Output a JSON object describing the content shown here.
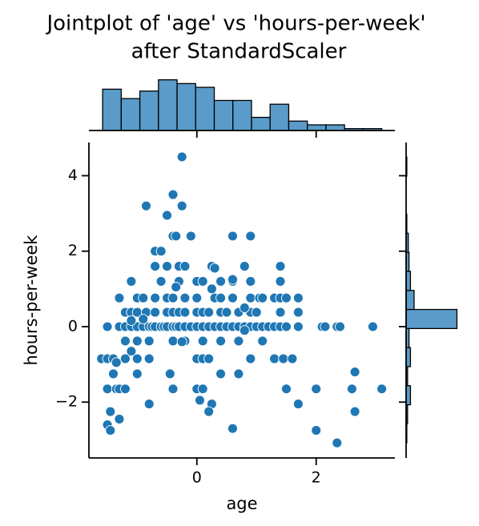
{
  "chart_data": {
    "type": "scatter",
    "title": [
      "Jointplot of 'age' vs 'hours-per-week'",
      "after StandardScaler"
    ],
    "x_label": "age",
    "y_label": "hours-per-week",
    "color": "#1f77b4",
    "xlim": [
      -1.81,
      3.32
    ],
    "ylim": [
      -3.48,
      4.88
    ],
    "xticks": [
      0,
      2
    ],
    "yticks": [
      {
        "value": -2,
        "label": "−2"
      },
      0,
      2,
      4
    ],
    "x": [
      -1.5,
      -1.3,
      -1.2,
      -1.1,
      -1.0,
      -0.9,
      -0.8,
      -0.75,
      -0.7,
      -0.6,
      -0.55,
      -0.5,
      -0.4,
      -0.35,
      -0.3,
      -0.2,
      -0.1,
      0,
      0.1,
      0.2,
      0.3,
      0.4,
      0.5,
      0.6,
      0.7,
      0.8,
      0.9,
      1.0,
      1.1,
      1.2,
      1.3,
      1.4,
      1.5,
      1.7,
      2.1,
      2.15,
      2.35,
      2.4,
      2.95,
      -1.2,
      -1.1,
      -1.0,
      -0.85,
      -0.7,
      -0.5,
      -0.4,
      -0.3,
      -0.2,
      0,
      0.1,
      0.2,
      0.4,
      0.5,
      0.7,
      0.9,
      1.0,
      1.4,
      1.7,
      -1.3,
      -1.0,
      -0.9,
      -0.7,
      -0.5,
      -0.4,
      -0.2,
      0,
      0.3,
      0.4,
      0.6,
      0.9,
      1.05,
      1.1,
      1.3,
      1.4,
      1.5,
      1.7,
      -1.1,
      -0.6,
      -0.3,
      0,
      0.1,
      0.4,
      0.6,
      0.9,
      1.4,
      -0.7,
      -0.5,
      -0.3,
      -0.2,
      0.25,
      0.8,
      1.4,
      -0.7,
      -0.6,
      -0.4,
      -0.35,
      -0.1,
      0.6,
      0.9,
      -1.2,
      -1.0,
      -0.8,
      -0.4,
      -0.2,
      0.1,
      0.4,
      0.7,
      1.1,
      -1.6,
      -1.5,
      -1.4,
      -1.2,
      -1.0,
      -0.8,
      0,
      0.1,
      0.2,
      0.9,
      1.3,
      1.45,
      1.6,
      -1.4,
      -1.0,
      -0.45,
      0.4,
      0.7,
      -1.5,
      -1.35,
      -1.3,
      -1.2,
      -0.4,
      0,
      0.1,
      1.5,
      2.0,
      2.6,
      -0.25,
      -0.4,
      -0.85,
      -0.25,
      -0.5,
      -1.5,
      -1.45,
      -1.45,
      -1.3,
      -0.8,
      0.05,
      0.25,
      0.2,
      0.6,
      2.0,
      2.35,
      2.65,
      1.7,
      2.65,
      3.1,
      -1.1,
      -0.9,
      0.8,
      0.3,
      -1.1,
      0.8,
      0.25,
      -0.35,
      0.6,
      -1.35,
      -0.25
    ],
    "y": [
      0,
      0,
      0,
      0,
      0,
      0,
      0,
      0,
      0,
      0,
      0,
      0,
      0,
      0,
      0,
      0,
      0,
      0,
      0,
      0,
      0,
      0,
      0,
      0,
      0,
      0,
      0,
      0,
      0,
      0,
      0,
      0,
      0,
      0,
      0,
      0,
      0,
      0,
      0,
      0.38,
      0.38,
      0.38,
      0.38,
      0.38,
      0.38,
      0.38,
      0.38,
      0.38,
      0.38,
      0.38,
      0.38,
      0.38,
      0.38,
      0.38,
      0.38,
      0.38,
      0.38,
      0.38,
      0.76,
      0.76,
      0.76,
      0.76,
      0.76,
      0.76,
      0.76,
      0.76,
      0.76,
      0.76,
      0.76,
      0.76,
      0.76,
      0.76,
      0.76,
      0.76,
      0.76,
      0.76,
      1.2,
      1.2,
      1.2,
      1.2,
      1.2,
      1.2,
      1.2,
      1.2,
      1.2,
      1.6,
      1.6,
      1.6,
      1.6,
      1.6,
      1.6,
      1.6,
      2.0,
      2.0,
      2.4,
      2.4,
      2.4,
      2.4,
      2.4,
      -0.38,
      -0.38,
      -0.38,
      -0.38,
      -0.38,
      -0.38,
      -0.38,
      -0.38,
      -0.38,
      -0.85,
      -0.85,
      -0.85,
      -0.85,
      -0.85,
      -0.85,
      -0.85,
      -0.85,
      -0.85,
      -0.85,
      -0.85,
      -0.85,
      -0.85,
      -1.25,
      -1.25,
      -1.25,
      -1.25,
      -1.25,
      -1.65,
      -1.65,
      -1.65,
      -1.65,
      -1.65,
      -1.65,
      -1.65,
      -1.65,
      -1.65,
      -1.65,
      4.5,
      3.5,
      3.2,
      3.2,
      2.95,
      -2.6,
      -2.75,
      -2.25,
      -2.45,
      -2.05,
      -1.95,
      -2.05,
      -2.25,
      -2.7,
      -2.75,
      -3.08,
      -2.25,
      -2.05,
      -1.2,
      -1.65,
      0.16,
      0.2,
      0.5,
      1.55,
      -0.65,
      -0.1,
      1.0,
      1.05,
      1.25,
      -0.95,
      -0.4
    ],
    "marginal_x": {
      "type": "histogram",
      "color": "#5a9bc9",
      "bins": [
        -1.58,
        -1.268,
        -0.956,
        -0.644,
        -0.332,
        -0.02,
        0.292,
        0.604,
        0.916,
        1.228,
        1.54,
        1.852,
        2.164,
        2.476,
        2.788,
        3.1
      ],
      "counts": [
        22,
        17,
        21,
        27,
        25,
        23,
        16,
        16,
        7,
        14,
        5,
        3,
        3,
        1,
        1
      ],
      "ylim": [
        0,
        29
      ]
    },
    "marginal_y": {
      "type": "histogram",
      "color": "#5a9bc9",
      "bins": [
        -3.08,
        -2.575,
        -2.07,
        -1.565,
        -1.06,
        -0.555,
        -0.05,
        0.455,
        0.96,
        1.465,
        1.97,
        2.475,
        2.98,
        3.485,
        3.99,
        4.495
      ],
      "counts": [
        1,
        2,
        6,
        2,
        6,
        4,
        70,
        11,
        6,
        4,
        3,
        1,
        0,
        0,
        1
      ],
      "xlim": [
        0,
        75
      ]
    }
  }
}
